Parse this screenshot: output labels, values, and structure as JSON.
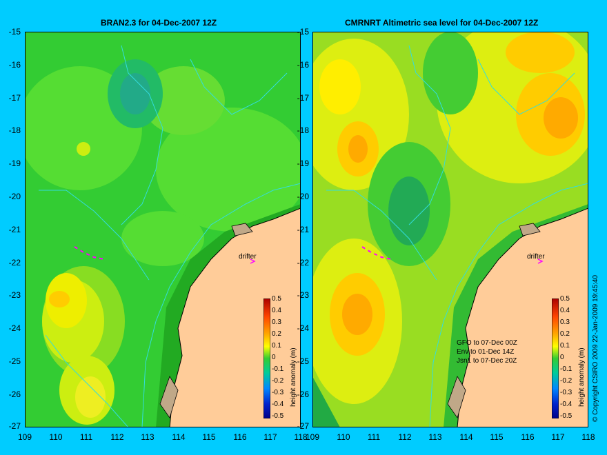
{
  "left_panel": {
    "title": "BRAN2.3 for 04-Dec-2007 12Z",
    "drifter_label": "drifter"
  },
  "right_panel": {
    "title": "CMRNRT Altimetric sea level  for 04-Dec-2007 12Z",
    "drifter_label": "drifter",
    "sat_lines": [
      "GFO to 07-Dec 00Z",
      "Env to 01-Dec 14Z",
      "Jsn1 to 07-Dec 20Z"
    ]
  },
  "y_ticks": [
    "-15",
    "-16",
    "-17",
    "-18",
    "-19",
    "-20",
    "-21",
    "-22",
    "-23",
    "-24",
    "-25",
    "-26",
    "-27"
  ],
  "x_ticks": [
    "109",
    "110",
    "111",
    "112",
    "113",
    "114",
    "115",
    "116",
    "117",
    "118"
  ],
  "colorbar": {
    "title": "height anomaly (m)",
    "labels": [
      "0.5",
      "0.4",
      "0.3",
      "0.2",
      "0.1",
      "0",
      "-0.1",
      "-0.2",
      "-0.3",
      "-0.4",
      "-0.5"
    ]
  },
  "credit": "© Copyright CSIRO 2009   22-Jan-2009 19:45:40",
  "colors": {
    "background": "#00CCFF",
    "land": "#FFCC99",
    "ocean_green": "#33CC33",
    "ocean_yellow": "#FFFF00",
    "ocean_orange": "#FFAA00",
    "contour": "#33DDDD",
    "drifter": "#FF00FF"
  },
  "chart_data": {
    "type": "heatmap",
    "xlim": [
      109,
      118
    ],
    "ylim": [
      -27,
      -15
    ],
    "xlabel": "",
    "ylabel": "",
    "colorbar_range": [
      -0.5,
      0.5
    ],
    "colorbar_title": "height anomaly (m)"
  }
}
